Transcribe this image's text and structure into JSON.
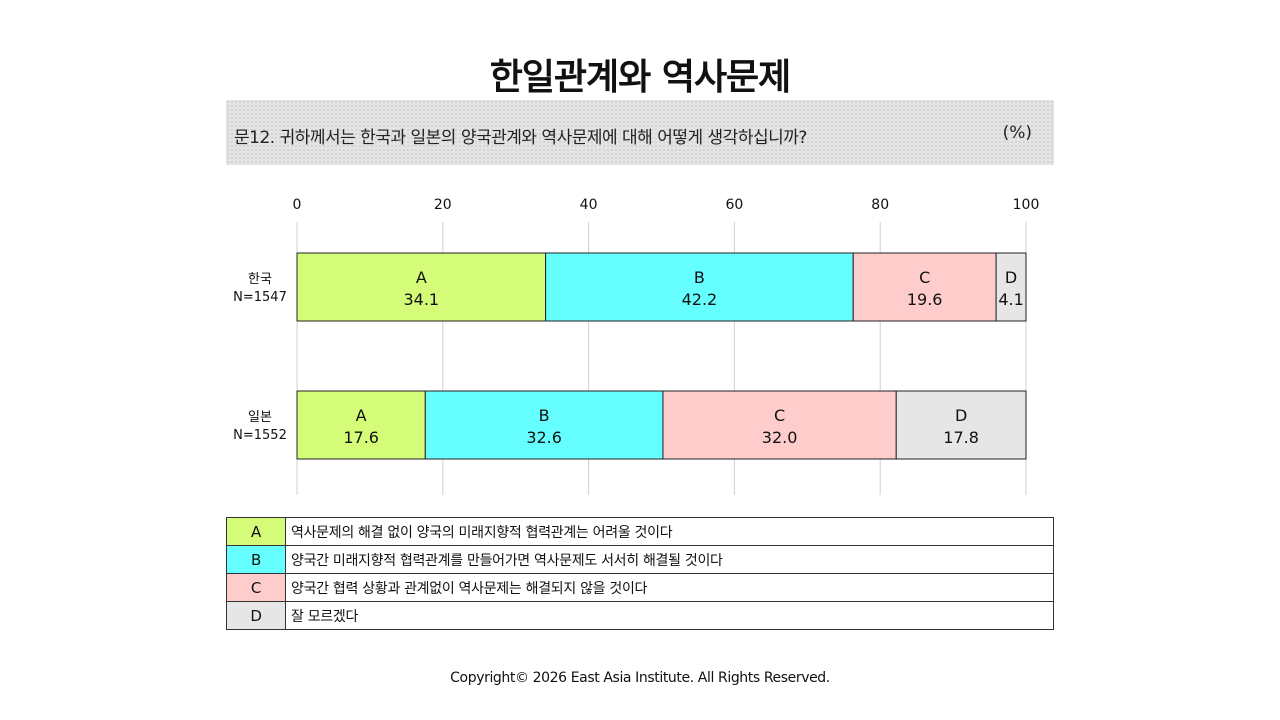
{
  "title": "한일관계와 역사문제",
  "question": {
    "text": "문12. 귀하께서는 한국과 일본의 양국관계와 역사문제에 대해 어떻게 생각하십니까?",
    "unit": "(%)"
  },
  "colors": {
    "A": "#d4fc79",
    "B": "#66ffff",
    "C": "#ffcccc",
    "D": "#e6e6e6"
  },
  "chart_data": {
    "type": "bar",
    "orientation": "horizontal",
    "stacked": true,
    "xlim": [
      0,
      100
    ],
    "xticks": [
      0,
      20,
      40,
      60,
      80,
      100
    ],
    "grid": true,
    "categories": [
      {
        "label": "한국",
        "n": "N=1547"
      },
      {
        "label": "일본",
        "n": "N=1552"
      }
    ],
    "series": [
      {
        "name": "A",
        "values": [
          34.1,
          17.6
        ]
      },
      {
        "name": "B",
        "values": [
          42.2,
          32.6
        ]
      },
      {
        "name": "C",
        "values": [
          19.6,
          32.0
        ]
      },
      {
        "name": "D",
        "values": [
          4.1,
          17.8
        ]
      }
    ]
  },
  "legend": [
    {
      "key": "A",
      "text": "역사문제의 해결 없이 양국의 미래지향적 협력관계는 어려울 것이다"
    },
    {
      "key": "B",
      "text": "양국간 미래지향적 협력관계를 만들어가면 역사문제도 서서히 해결될 것이다"
    },
    {
      "key": "C",
      "text": "양국간 협력 상황과 관계없이 역사문제는 해결되지 않을 것이다"
    },
    {
      "key": "D",
      "text": "잘 모르겠다"
    }
  ],
  "footer": "Copyright© 2026 East Asia Institute. All Rights Reserved."
}
